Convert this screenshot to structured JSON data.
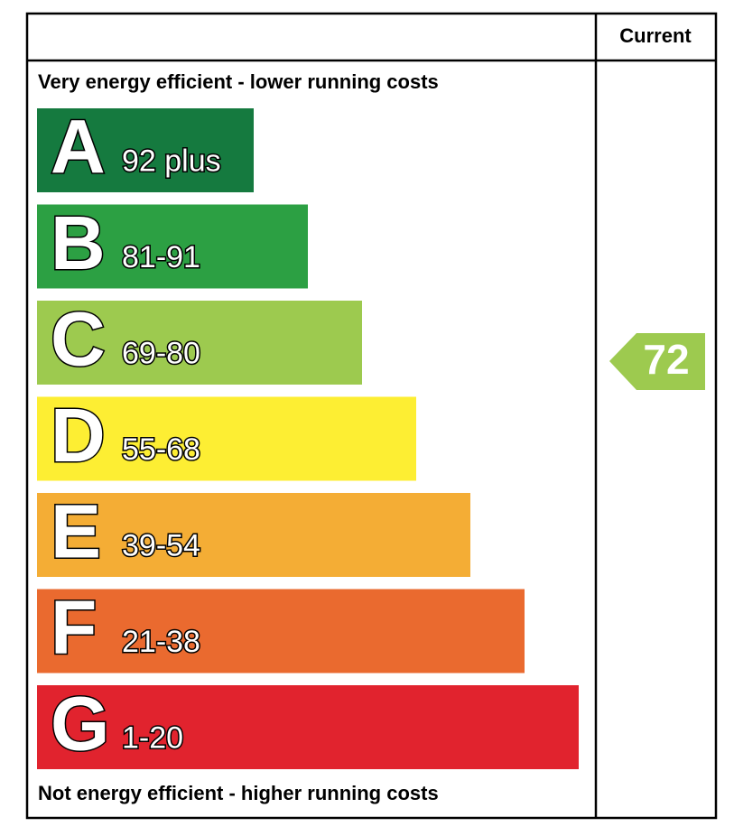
{
  "header": {
    "current": "Current"
  },
  "top_label": "Very energy efficient - lower running costs",
  "bottom_label": "Not energy efficient - higher running costs",
  "bands": [
    {
      "letter": "A",
      "range": "92 plus",
      "color": "#157a3f"
    },
    {
      "letter": "B",
      "range": "81-91",
      "color": "#2ca043"
    },
    {
      "letter": "C",
      "range": "69-80",
      "color": "#9dca4f"
    },
    {
      "letter": "D",
      "range": "55-68",
      "color": "#fdee33"
    },
    {
      "letter": "E",
      "range": "39-54",
      "color": "#f4ad35"
    },
    {
      "letter": "F",
      "range": "21-38",
      "color": "#ea6a2f"
    },
    {
      "letter": "G",
      "range": "1-20",
      "color": "#e1232e"
    }
  ],
  "current": {
    "value": 72,
    "color": "#9dca4f"
  }
}
